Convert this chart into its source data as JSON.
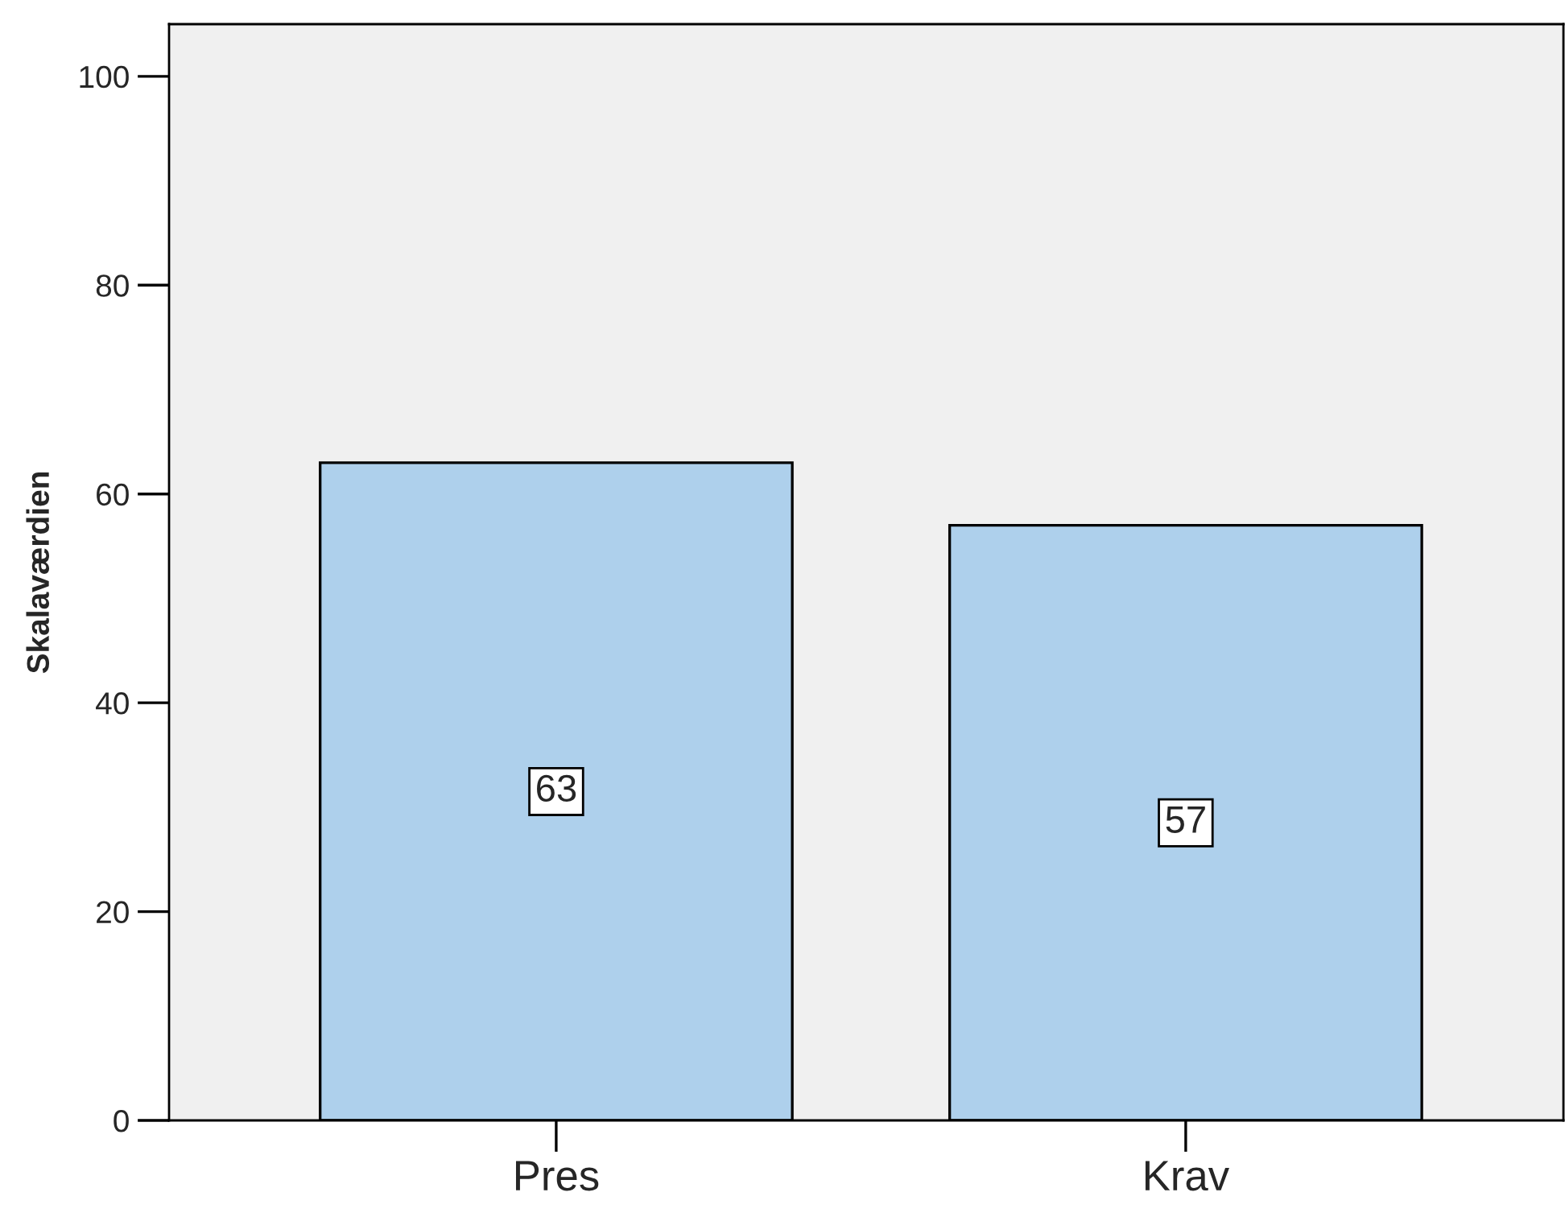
{
  "chart_data": {
    "type": "bar",
    "ylabel": "Skalaværdien",
    "categories": [
      "Pres",
      "Krav"
    ],
    "values": [
      63,
      57
    ],
    "color": "#aed0ec",
    "ylim": [
      0,
      105
    ],
    "yticks": [
      0,
      20,
      40,
      60,
      80,
      100
    ],
    "grid": false,
    "data_labels": true
  }
}
